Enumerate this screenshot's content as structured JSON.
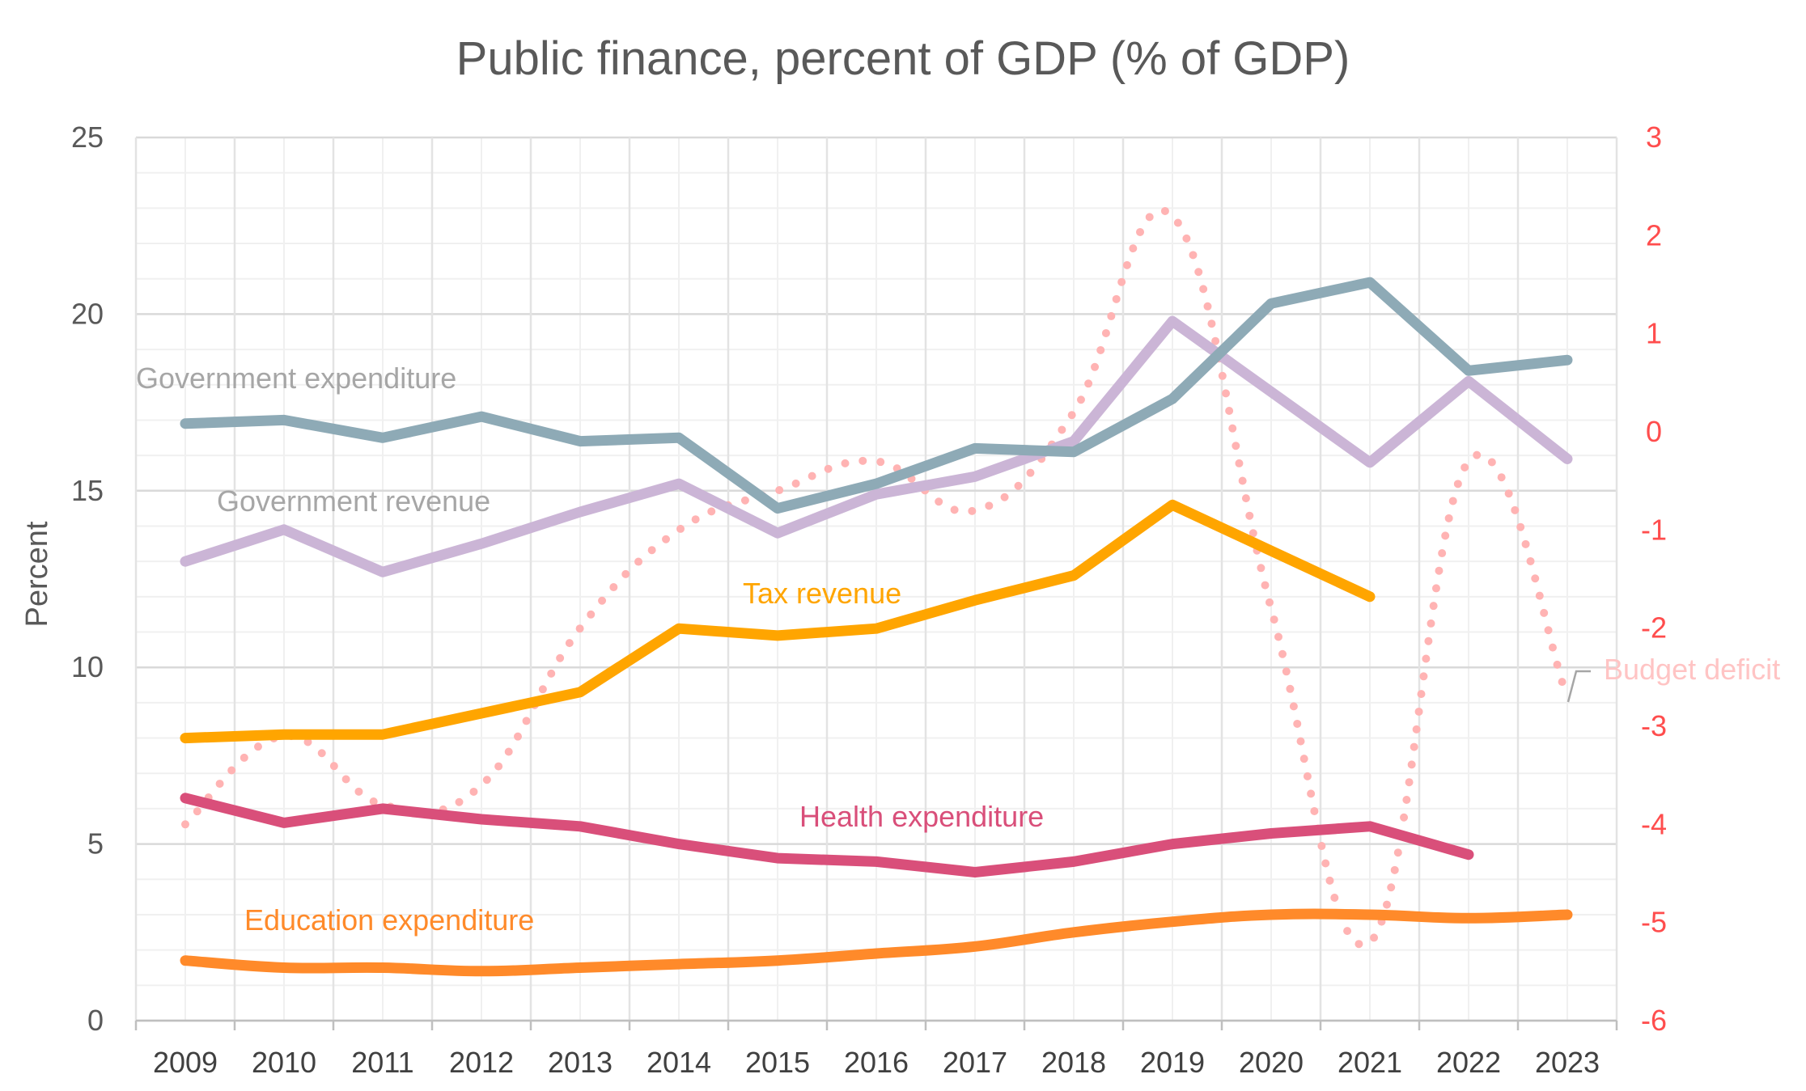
{
  "chart_data": {
    "type": "line",
    "title": "Public finance, percent of GDP (% of GDP)",
    "ylabel": "Percent",
    "xlabel": "",
    "categories": [
      "2009",
      "2010",
      "2011",
      "2012",
      "2013",
      "2014",
      "2015",
      "2016",
      "2017",
      "2018",
      "2019",
      "2020",
      "2021",
      "2022",
      "2023"
    ],
    "ylim_left": [
      0,
      25
    ],
    "yticks_left": [
      "0",
      "5",
      "10",
      "15",
      "20",
      "25"
    ],
    "ylim_right": [
      -6,
      3
    ],
    "yticks_right": [
      "-6",
      "-5",
      "-4",
      "-3",
      "-2",
      "-1",
      "0",
      "1",
      "2",
      "3"
    ],
    "grid": true,
    "series": [
      {
        "name": "Government expenditure",
        "axis": "left",
        "style": "solid",
        "color": "#8eaab6",
        "label_color": "#a6a6a6",
        "values": [
          16.9,
          17.0,
          16.5,
          17.1,
          16.4,
          16.5,
          14.5,
          15.2,
          16.2,
          16.1,
          17.6,
          20.3,
          20.9,
          18.4,
          18.7
        ]
      },
      {
        "name": "Government revenue",
        "axis": "left",
        "style": "solid",
        "color": "#cbb5d6",
        "label_color": "#a6a6a6",
        "values": [
          13.0,
          13.9,
          12.7,
          13.5,
          14.4,
          15.2,
          13.8,
          14.9,
          15.4,
          16.4,
          19.8,
          17.8,
          15.8,
          18.1,
          15.9
        ]
      },
      {
        "name": "Tax revenue",
        "axis": "left",
        "style": "solid",
        "color": "#ffa500",
        "label_color": "#ffa500",
        "values": [
          8.0,
          8.1,
          8.1,
          8.7,
          9.3,
          11.1,
          10.9,
          11.1,
          11.9,
          12.6,
          14.6,
          13.3,
          12.0,
          null,
          null
        ]
      },
      {
        "name": "Health expenditure",
        "axis": "left",
        "style": "solid",
        "color": "#d94f7a",
        "label_color": "#d94f7a",
        "values": [
          6.3,
          5.6,
          6.0,
          5.7,
          5.5,
          5.0,
          4.6,
          4.5,
          4.2,
          4.5,
          5.0,
          5.3,
          5.5,
          4.7,
          null
        ]
      },
      {
        "name": "Education expenditure",
        "axis": "left",
        "style": "solid",
        "color": "#ff8a2a",
        "label_color": "#ff8a2a",
        "values": [
          1.7,
          1.5,
          1.5,
          1.4,
          1.5,
          1.6,
          1.7,
          1.9,
          2.1,
          2.5,
          2.8,
          3.0,
          3.0,
          2.9,
          3.0
        ]
      },
      {
        "name": "Budget deficit",
        "axis": "right",
        "style": "dotted",
        "color": "#ffb3b3",
        "label_color": "#ffc4c4",
        "values": [
          -4.0,
          -3.1,
          -3.8,
          -3.6,
          -2.0,
          -1.0,
          -0.6,
          -0.3,
          -0.8,
          0.2,
          2.2,
          -1.8,
          -5.2,
          -0.3,
          -2.7
        ]
      }
    ]
  }
}
